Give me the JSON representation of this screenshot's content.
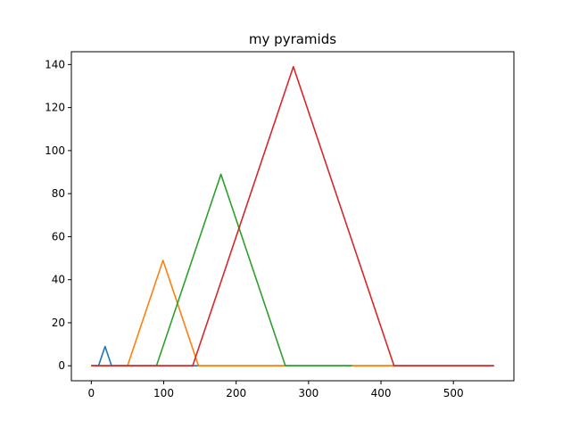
{
  "chart_data": {
    "type": "line",
    "title": "my pyramids",
    "xlabel": "",
    "ylabel": "",
    "xlim": [
      -27.5,
      583.5
    ],
    "ylim": [
      -6.95,
      145.95
    ],
    "xticks": [
      0,
      100,
      200,
      300,
      400,
      500
    ],
    "yticks": [
      0,
      20,
      40,
      60,
      80,
      100,
      120,
      140
    ],
    "grid": false,
    "legend": false,
    "series": [
      {
        "color": "#1f77b4",
        "x": [
          0,
          10,
          19,
          28,
          556
        ],
        "y": [
          0,
          0,
          9,
          0,
          0
        ]
      },
      {
        "color": "#ff7f0e",
        "x": [
          0,
          50,
          99,
          148,
          556
        ],
        "y": [
          0,
          0,
          49,
          0,
          0
        ]
      },
      {
        "color": "#2ca02c",
        "x": [
          0,
          90,
          179,
          268,
          360
        ],
        "y": [
          0,
          0,
          89,
          0,
          0
        ]
      },
      {
        "color": "#d62728",
        "x": [
          0,
          140,
          279,
          418,
          556
        ],
        "y": [
          0,
          0,
          139,
          0,
          0
        ]
      }
    ]
  }
}
